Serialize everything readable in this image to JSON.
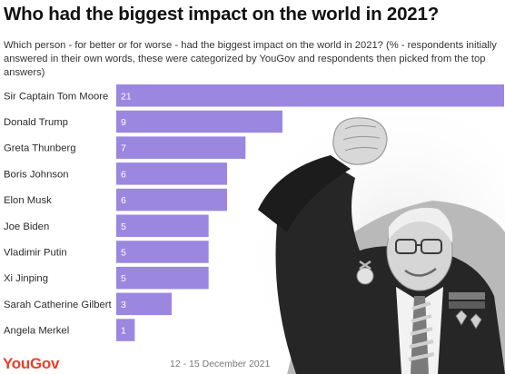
{
  "chart_data": {
    "type": "bar",
    "orientation": "horizontal",
    "title": "Who had the biggest impact on the world in 2021?",
    "subtitle": "Which person - for better or for worse - had the biggest impact on the world in 2021? (% - respondents initially answered in their own words, these were categorized by YouGov and respondents then picked from the top answers)",
    "categories": [
      "Sir Captain Tom Moore",
      "Donald Trump",
      "Greta Thunberg",
      "Boris Johnson",
      "Elon Musk",
      "Joe Biden",
      "Vladimir Putin",
      "Xi Jinping",
      "Sarah Catherine Gilbert",
      "Angela Merkel"
    ],
    "values": [
      21,
      9,
      7,
      6,
      6,
      5,
      5,
      5,
      3,
      1
    ],
    "xlim": [
      0,
      21
    ],
    "grid": false,
    "bar_color": "#9b87e0",
    "label_color": "#ffffff"
  },
  "footer": {
    "brand": "YouGov",
    "brand_color": "#e8402a",
    "date": "12 - 15 December 2021"
  },
  "image": {
    "description_icon": "portrait-raised-fist-icon"
  }
}
